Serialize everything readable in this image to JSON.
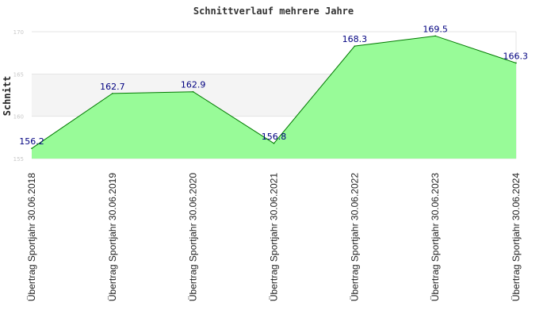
{
  "chart_data": {
    "type": "area",
    "title": "Schnittverlauf mehrere Jahre",
    "xlabel": "",
    "ylabel": "Schnitt",
    "categories": [
      "Übertrag Sportjahr 30.06.2018",
      "Übertrag Sportjahr 30.06.2019",
      "Übertrag Sportjahr 30.06.2020",
      "Übertrag Sportjahr 30.06.2021",
      "Übertrag Sportjahr 30.06.2022",
      "Übertrag Sportjahr 30.06.2023",
      "Übertrag Sportjahr 30.06.2024"
    ],
    "values": [
      156.2,
      162.7,
      162.9,
      156.8,
      168.3,
      169.5,
      166.3
    ],
    "value_labels": [
      "156.2",
      "162.7",
      "162.9",
      "156.8",
      "168.3",
      "169.5",
      "166.3"
    ],
    "ylim": [
      155,
      170
    ],
    "yticks": [
      "155",
      "160",
      "165",
      "170"
    ],
    "grid": true,
    "colors": {
      "fill": "#98fb98",
      "line": "#007a00",
      "band": "#f4f4f4",
      "grid": "#e4e4e4",
      "label": "#000080"
    }
  }
}
